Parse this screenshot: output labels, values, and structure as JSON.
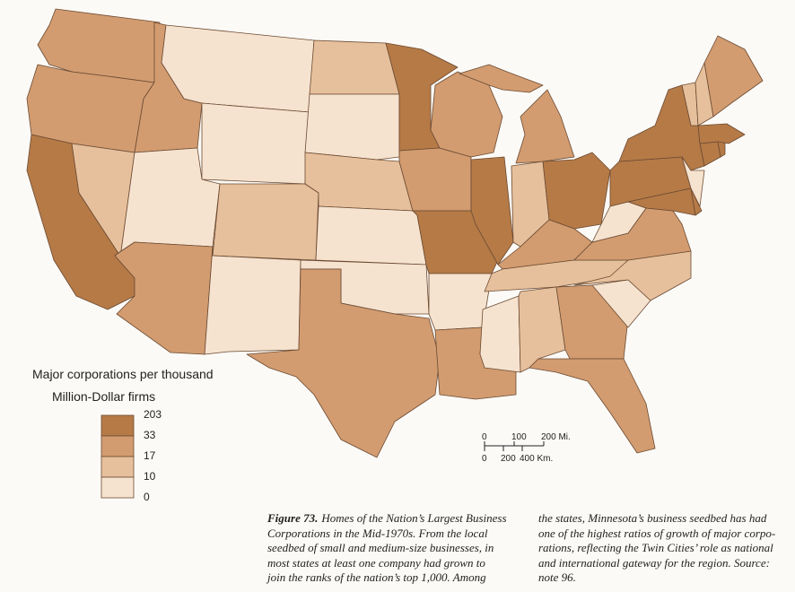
{
  "legend": {
    "title_lines": [
      "Major corporations per thousand",
      "Million-Dollar firms"
    ],
    "breaks": [
      "203",
      "33",
      "17",
      "10",
      "0"
    ],
    "colors": [
      "#b57a46",
      "#d29c70",
      "#e6c09c",
      "#f6e3cf"
    ]
  },
  "scale_bar": {
    "miles": [
      "0",
      "100",
      "200 Mi."
    ],
    "km": [
      "0",
      "200",
      "400 Km."
    ]
  },
  "caption": {
    "label": "Figure 73.",
    "column_1": [
      "Homes of the Nation’s Largest Business",
      "Corporations in the Mid-1970s. From the local",
      "seedbed of small and medium-size businesses, in",
      "most states at least one company had grown to",
      "join the ranks of the nation’s top 1,000. Among"
    ],
    "column_2": [
      "the states, Minnesota’s business seedbed has had",
      "one of the highest ratios of growth of major corpo-",
      "rations, reflecting the Twin Cities’ role as national",
      "and international gateway for the region. Source:",
      "note 96."
    ]
  }
}
